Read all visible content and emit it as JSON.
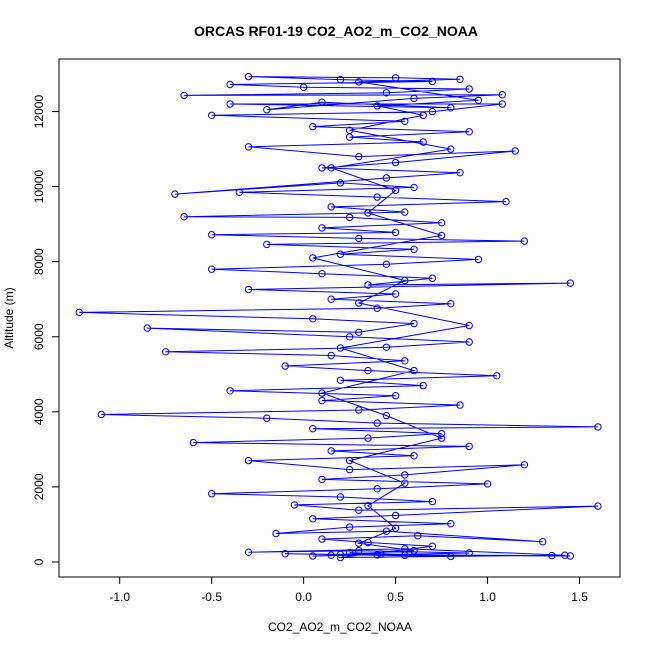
{
  "chart_data": {
    "type": "line",
    "title": "ORCAS RF01-19 CO2_AO2_m_CO2_NOAA",
    "xlabel": "CO2_AO2_m_CO2_NOAA",
    "ylabel": "Altitude (m)",
    "xlim": [
      -1.33,
      1.72
    ],
    "ylim": [
      -400,
      13400
    ],
    "x_ticks": [
      -1.0,
      -0.5,
      0.0,
      0.5,
      1.0,
      1.5
    ],
    "x_tick_labels": [
      "-1.0",
      "-0.5",
      "0.0",
      "0.5",
      "1.0",
      "1.5"
    ],
    "y_ticks": [
      0,
      2000,
      4000,
      6000,
      8000,
      10000,
      12000
    ],
    "y_tick_labels": [
      "0",
      "2000",
      "4000",
      "6000",
      "8000",
      "10000",
      "12000"
    ],
    "grid": false,
    "legend": "none",
    "marker": "open-circle",
    "series_color": "#0000ff",
    "series": [
      {
        "points": [
          [
            0.15,
            180
          ],
          [
            0.42,
            210
          ],
          [
            0.05,
            160
          ],
          [
            0.9,
            240
          ],
          [
            0.3,
            300
          ],
          [
            -0.3,
            260
          ],
          [
            0.55,
            350
          ],
          [
            1.42,
            180
          ],
          [
            0.2,
            120
          ],
          [
            0.7,
            420
          ],
          [
            0.35,
            520
          ],
          [
            0.1,
            610
          ],
          [
            0.62,
            700
          ],
          [
            1.3,
            540
          ],
          [
            0.45,
            820
          ],
          [
            -0.15,
            760
          ],
          [
            0.25,
            930
          ],
          [
            0.8,
            1020
          ],
          [
            0.05,
            1150
          ],
          [
            0.5,
            1240
          ],
          [
            1.6,
            1490
          ],
          [
            0.3,
            1380
          ],
          [
            -0.05,
            1520
          ],
          [
            0.7,
            1610
          ],
          [
            0.2,
            1730
          ],
          [
            -0.5,
            1820
          ],
          [
            0.4,
            1950
          ],
          [
            1.0,
            2080
          ],
          [
            0.1,
            2200
          ],
          [
            0.55,
            2320
          ],
          [
            1.2,
            2590
          ],
          [
            0.25,
            2460
          ],
          [
            -0.3,
            2700
          ],
          [
            0.6,
            2830
          ],
          [
            0.15,
            2960
          ],
          [
            0.9,
            3080
          ],
          [
            -0.6,
            3180
          ],
          [
            0.35,
            3300
          ],
          [
            0.75,
            3420
          ],
          [
            0.05,
            3550
          ],
          [
            1.6,
            3600
          ],
          [
            0.4,
            3700
          ],
          [
            -0.2,
            3830
          ],
          [
            -1.1,
            3930
          ],
          [
            0.3,
            4050
          ],
          [
            0.85,
            4180
          ],
          [
            0.1,
            4300
          ],
          [
            0.5,
            4430
          ],
          [
            -0.4,
            4560
          ],
          [
            0.65,
            4700
          ],
          [
            0.2,
            4840
          ],
          [
            1.05,
            4960
          ],
          [
            0.35,
            5100
          ],
          [
            -0.1,
            5220
          ],
          [
            0.55,
            5360
          ],
          [
            0.15,
            5500
          ],
          [
            -0.75,
            5600
          ],
          [
            0.45,
            5720
          ],
          [
            0.9,
            5860
          ],
          [
            0.25,
            6000
          ],
          [
            -0.85,
            6230
          ],
          [
            0.3,
            6120
          ],
          [
            0.6,
            6350
          ],
          [
            0.05,
            6480
          ],
          [
            -1.22,
            6650
          ],
          [
            0.4,
            6760
          ],
          [
            0.8,
            6880
          ],
          [
            0.15,
            7000
          ],
          [
            0.5,
            7140
          ],
          [
            -0.3,
            7260
          ],
          [
            1.45,
            7430
          ],
          [
            0.35,
            7380
          ],
          [
            0.7,
            7560
          ],
          [
            0.1,
            7680
          ],
          [
            -0.5,
            7800
          ],
          [
            0.45,
            7930
          ],
          [
            0.95,
            8060
          ],
          [
            0.2,
            8200
          ],
          [
            0.6,
            8330
          ],
          [
            -0.2,
            8460
          ],
          [
            1.2,
            8550
          ],
          [
            0.3,
            8620
          ],
          [
            -0.5,
            8720
          ],
          [
            0.5,
            8780
          ],
          [
            0.1,
            8900
          ],
          [
            0.75,
            9040
          ],
          [
            0.25,
            9180
          ],
          [
            -0.65,
            9200
          ],
          [
            0.55,
            9320
          ],
          [
            0.15,
            9460
          ],
          [
            1.1,
            9600
          ],
          [
            0.4,
            9720
          ],
          [
            -0.35,
            9850
          ],
          [
            0.6,
            9980
          ],
          [
            0.2,
            10100
          ],
          [
            -0.7,
            9800
          ],
          [
            0.45,
            10230
          ],
          [
            0.85,
            10370
          ],
          [
            0.1,
            10500
          ],
          [
            0.5,
            10640
          ],
          [
            1.15,
            10950
          ],
          [
            0.3,
            10800
          ],
          [
            -0.3,
            11060
          ],
          [
            0.65,
            11190
          ],
          [
            0.25,
            11320
          ],
          [
            0.9,
            11460
          ],
          [
            0.05,
            11600
          ],
          [
            0.55,
            11740
          ],
          [
            -0.5,
            11900
          ],
          [
            0.7,
            12000
          ],
          [
            1.08,
            12200
          ],
          [
            -0.4,
            12200
          ],
          [
            0.8,
            12100
          ],
          [
            0.1,
            12250
          ],
          [
            -0.2,
            12050
          ],
          [
            0.6,
            12350
          ],
          [
            1.08,
            12450
          ],
          [
            -0.65,
            12430
          ],
          [
            0.45,
            12500
          ],
          [
            0.9,
            12600
          ],
          [
            0.0,
            12650
          ],
          [
            -0.4,
            12720
          ],
          [
            0.7,
            12800
          ],
          [
            0.2,
            12850
          ],
          [
            -0.3,
            12930
          ],
          [
            0.5,
            12900
          ],
          [
            0.85,
            12860
          ],
          [
            0.3,
            12790
          ],
          [
            0.95,
            12300
          ],
          [
            0.4,
            12150
          ],
          [
            0.65,
            11900
          ],
          [
            0.25,
            11500
          ],
          [
            0.8,
            11000
          ],
          [
            0.15,
            10500
          ],
          [
            0.5,
            9900
          ],
          [
            0.35,
            9300
          ],
          [
            0.75,
            8700
          ],
          [
            0.05,
            8100
          ],
          [
            0.55,
            7500
          ],
          [
            0.3,
            6900
          ],
          [
            0.9,
            6300
          ],
          [
            0.2,
            5700
          ],
          [
            0.6,
            5100
          ],
          [
            0.1,
            4500
          ],
          [
            0.45,
            3900
          ],
          [
            0.75,
            3300
          ],
          [
            0.25,
            2700
          ],
          [
            0.55,
            2100
          ],
          [
            0.35,
            1500
          ],
          [
            0.5,
            900
          ],
          [
            0.3,
            500
          ],
          [
            0.6,
            300
          ],
          [
            0.2,
            200
          ],
          [
            1.35,
            170
          ],
          [
            0.4,
            190
          ],
          [
            -0.1,
            220
          ],
          [
            0.8,
            150
          ],
          [
            0.25,
            250
          ],
          [
            0.55,
            180
          ],
          [
            1.45,
            160
          ]
        ]
      }
    ]
  }
}
